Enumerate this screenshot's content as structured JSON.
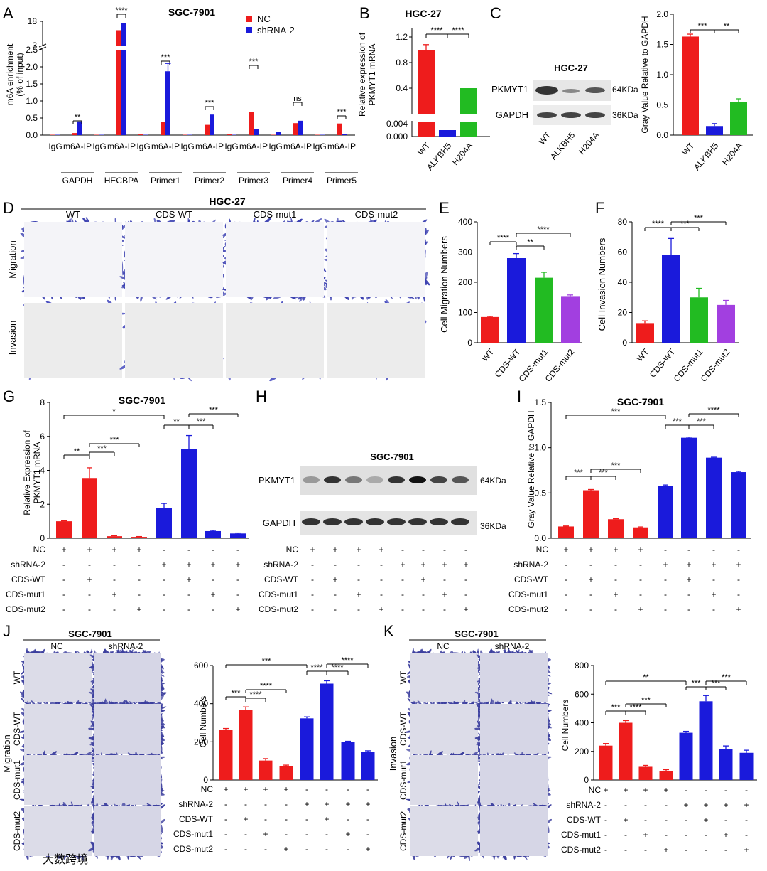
{
  "colors": {
    "red": "#ee1c1c",
    "blue": "#1a1adb",
    "green": "#22bb22",
    "purple": "#a23fe0",
    "nc": "#ee1c1c",
    "sh": "#1a1adb"
  },
  "panels": {
    "A": "A",
    "B": "B",
    "C": "C",
    "D": "D",
    "E": "E",
    "F": "F",
    "G": "G",
    "H": "H",
    "I": "I",
    "J": "J",
    "K": "K"
  },
  "A": {
    "title": "SGC-7901",
    "ylabel1": "m6A enrichment",
    "ylabel2": "(% of input)",
    "legend": [
      "NC",
      "shRNA-2"
    ],
    "upper_ticks": [
      "18",
      "3"
    ],
    "ticks": [
      "2.5",
      "2.0",
      "1.5",
      "1.0",
      "0.5",
      "0.0"
    ],
    "groups": [
      {
        "name": "GAPDH",
        "red": false,
        "sig": "**"
      },
      {
        "name": "HECBPA",
        "red": false,
        "sig": "****"
      },
      {
        "name": "Primer1",
        "red": true,
        "sig": "***"
      },
      {
        "name": "Primer2",
        "red": true,
        "sig": "***"
      },
      {
        "name": "Primer3",
        "red": false,
        "sig": "***"
      },
      {
        "name": "Primer4",
        "red": false,
        "sig": "ns"
      },
      {
        "name": "Primer5",
        "red": false,
        "sig": "***"
      }
    ],
    "cats": [
      "IgG",
      "m6A-IP"
    ]
  },
  "B": {
    "title": "HGC-27",
    "ylabel1": "Relative expression of",
    "ylabel2": "PKMYT1 mRNA",
    "ticks_top": [
      "1.2",
      "0.8",
      "0.4"
    ],
    "ticks_bot": [
      "0.004",
      "0.000"
    ],
    "cats": [
      "WT",
      "ALKBH5",
      "H204A"
    ],
    "sig": "****"
  },
  "C": {
    "title": "HGC-27",
    "blot": [
      "PKMYT1",
      "GAPDH"
    ],
    "kda": [
      "64KDa",
      "36KDa"
    ],
    "cats": [
      "WT",
      "ALKBH5",
      "H204A"
    ],
    "ylabel": "Gray Value Relative to GAPDH",
    "ticks": [
      "2.0",
      "1.5",
      "1.0",
      "0.5",
      "0.0"
    ],
    "sig": [
      "***",
      "**"
    ]
  },
  "D": {
    "title": "HGC-27",
    "cols": [
      "WT",
      "CDS-WT",
      "CDS-mut1",
      "CDS-mut2"
    ],
    "rows": [
      "Migration",
      "Invasion"
    ]
  },
  "E": {
    "ylabel": "Cell Migration Numbers",
    "ticks": [
      "400",
      "300",
      "200",
      "100",
      "0"
    ],
    "cats": [
      "WT",
      "CDS-WT",
      "CDS-mut1",
      "CDS-mut2"
    ],
    "sig": [
      "****",
      "**",
      "****"
    ]
  },
  "F": {
    "ylabel": "Cell Invasion Numbers",
    "ticks": [
      "80",
      "60",
      "40",
      "20",
      "0"
    ],
    "cats": [
      "WT",
      "CDS-WT",
      "CDS-mut1",
      "CDS-mut2"
    ],
    "sig": [
      "****",
      "***",
      "***"
    ]
  },
  "G": {
    "title": "SGC-7901",
    "ylabel1": "Relative Expression of",
    "ylabel2": "PKMYT1 mRNA",
    "ticks": [
      "8",
      "6",
      "4",
      "2",
      "0"
    ],
    "sig": [
      "*",
      "**",
      "***",
      "***",
      "**",
      "***",
      "***"
    ]
  },
  "H": {
    "title": "SGC-7901",
    "blot": [
      "PKMYT1",
      "GAPDH"
    ],
    "kda": [
      "64KDa",
      "36KDa"
    ]
  },
  "I": {
    "title": "SGC-7901",
    "ylabel": "Gray Value Relative to GAPDH",
    "ticks": [
      "1.5",
      "1.0",
      "0.5",
      "0.0"
    ],
    "sig": [
      "***",
      "***",
      "***",
      "***",
      "***",
      "***",
      "****"
    ]
  },
  "J": {
    "title": "SGC-7901",
    "cols": [
      "NC",
      "shRNA-2"
    ],
    "rows": [
      "WT",
      "CDS-WT",
      "CDS-mut1",
      "CDS-mut2"
    ],
    "side": "Migration",
    "ylabel": "Cell Numbers",
    "ticks": [
      "600",
      "400",
      "200",
      "0"
    ],
    "sig": [
      "***",
      "***",
      "****",
      "****",
      "****",
      "****",
      "****"
    ]
  },
  "K": {
    "title": "SGC-7901",
    "cols": [
      "NC",
      "shRNA-2"
    ],
    "rows": [
      "WT",
      "CDS-WT",
      "CDS-mut1",
      "CDS-mut2"
    ],
    "side": "Invasion",
    "ylabel": "Cell Numbers",
    "ticks": [
      "800",
      "600",
      "400",
      "200",
      "0"
    ],
    "sig": [
      "**",
      "***",
      "****",
      "***",
      "***",
      "***",
      "***"
    ]
  },
  "cond_labels": [
    "NC",
    "shRNA-2",
    "CDS-WT",
    "CDS-mut1",
    "CDS-mut2"
  ],
  "cond_matrix": [
    [
      "+",
      "+",
      "+",
      "+",
      "-",
      "-",
      "-",
      "-"
    ],
    [
      "-",
      "-",
      "-",
      "-",
      "+",
      "+",
      "+",
      "+"
    ],
    [
      "-",
      "+",
      "-",
      "-",
      "-",
      "+",
      "-",
      "-"
    ],
    [
      "-",
      "-",
      "+",
      "-",
      "-",
      "-",
      "+",
      "-"
    ],
    [
      "-",
      "-",
      "-",
      "+",
      "-",
      "-",
      "-",
      "+"
    ]
  ],
  "watermark": "大数跨境",
  "chart_data": [
    {
      "panel": "A",
      "type": "bar",
      "categories": [
        "GAPDH IgG",
        "GAPDH m6A-IP",
        "HECBPA IgG",
        "HECBPA m6A-IP",
        "Primer1 IgG",
        "Primer1 m6A-IP",
        "Primer2 IgG",
        "Primer2 m6A-IP",
        "Primer3 IgG",
        "Primer3 m6A-IP",
        "Primer4 IgG",
        "Primer4 m6A-IP",
        "Primer5 IgG",
        "Primer5 m6A-IP"
      ],
      "series": [
        {
          "name": "NC",
          "values": [
            0.01,
            0.06,
            0.01,
            12.5,
            0.02,
            0.38,
            0.01,
            0.3,
            0.02,
            0.68,
            0.01,
            0.35,
            0.01,
            0.34
          ]
        },
        {
          "name": "shRNA-2",
          "values": [
            0.01,
            0.4,
            0.01,
            17.0,
            0.01,
            1.87,
            0.01,
            0.6,
            0.01,
            0.18,
            0.1,
            0.42,
            0.01,
            0.03
          ]
        }
      ],
      "ylim": [
        0,
        18
      ]
    },
    {
      "panel": "B",
      "type": "bar",
      "categories": [
        "WT",
        "ALKBH5",
        "H204A"
      ],
      "values": [
        1.0,
        0.001,
        0.4
      ],
      "ylim": [
        0,
        1.2
      ]
    },
    {
      "panel": "C",
      "type": "bar",
      "categories": [
        "WT",
        "ALKBH5",
        "H204A"
      ],
      "values": [
        1.63,
        0.15,
        0.55
      ],
      "ylim": [
        0,
        2.0
      ]
    },
    {
      "panel": "E",
      "type": "bar",
      "categories": [
        "WT",
        "CDS-WT",
        "CDS-mut1",
        "CDS-mut2"
      ],
      "values": [
        85,
        280,
        215,
        152
      ],
      "errors": [
        2,
        15,
        18,
        6
      ],
      "ylim": [
        0,
        400
      ]
    },
    {
      "panel": "F",
      "type": "bar",
      "categories": [
        "WT",
        "CDS-WT",
        "CDS-mut1",
        "CDS-mut2"
      ],
      "values": [
        13,
        58,
        30,
        25
      ],
      "errors": [
        1.5,
        11,
        6,
        3
      ],
      "ylim": [
        0,
        80
      ]
    },
    {
      "panel": "G",
      "type": "bar",
      "categories": [
        "1",
        "2",
        "3",
        "4",
        "5",
        "6",
        "7",
        "8"
      ],
      "values": [
        1.0,
        3.55,
        0.12,
        0.08,
        1.8,
        5.25,
        0.42,
        0.28
      ],
      "errors": [
        0.02,
        0.6,
        0.03,
        0.02,
        0.25,
        0.8,
        0.04,
        0.03
      ],
      "ylim": [
        0,
        8
      ]
    },
    {
      "panel": "I",
      "type": "bar",
      "categories": [
        "1",
        "2",
        "3",
        "4",
        "5",
        "6",
        "7",
        "8"
      ],
      "values": [
        0.13,
        0.53,
        0.21,
        0.12,
        0.58,
        1.11,
        0.89,
        0.73
      ],
      "errors": [
        0.005,
        0.008,
        0.005,
        0.005,
        0.008,
        0.008,
        0.005,
        0.008
      ],
      "ylim": [
        0,
        1.5
      ]
    },
    {
      "panel": "J",
      "type": "bar",
      "categories": [
        "1",
        "2",
        "3",
        "4",
        "5",
        "6",
        "7",
        "8"
      ],
      "values": [
        262,
        368,
        102,
        72,
        323,
        505,
        198,
        148
      ],
      "errors": [
        8,
        15,
        10,
        6,
        8,
        15,
        5,
        5
      ],
      "ylim": [
        0,
        600
      ]
    },
    {
      "panel": "K",
      "type": "bar",
      "categories": [
        "1",
        "2",
        "3",
        "4",
        "5",
        "6",
        "7",
        "8"
      ],
      "values": [
        240,
        400,
        92,
        60,
        330,
        550,
        218,
        190
      ],
      "errors": [
        15,
        15,
        10,
        12,
        10,
        40,
        20,
        18
      ],
      "ylim": [
        0,
        800
      ]
    }
  ]
}
